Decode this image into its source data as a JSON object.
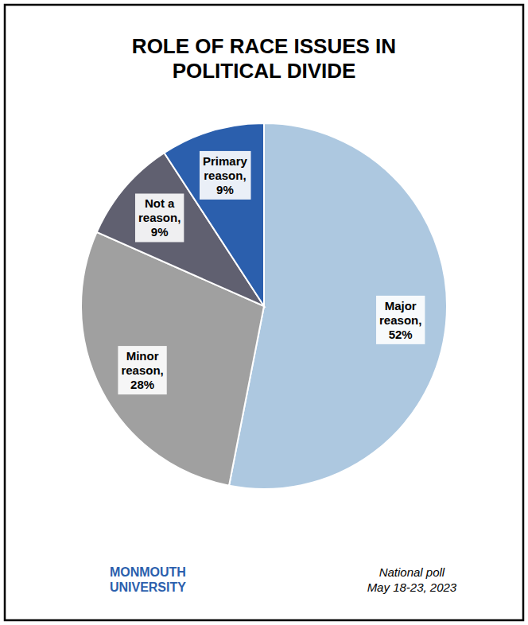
{
  "chart_data": {
    "type": "pie",
    "title": "ROLE OF RACE ISSUES IN\nPOLITICAL DIVIDE",
    "values": [
      52,
      28,
      9,
      9
    ],
    "value_labels": [
      "Major\nreason,\n52%",
      "Minor\nreason,\n28%",
      "Not a\nreason,\n9%",
      "Primary\nreason,\n9%"
    ],
    "colors": [
      "#adc8e0",
      "#a0a0a0",
      "#606070",
      "#2b5fad"
    ],
    "data_labels": true,
    "annotations": [
      {
        "text": "MONMOUTH\nUNIVERSITY",
        "color": "#2b5fad"
      },
      {
        "text": "National poll\nMay 18-23, 2023"
      }
    ]
  }
}
